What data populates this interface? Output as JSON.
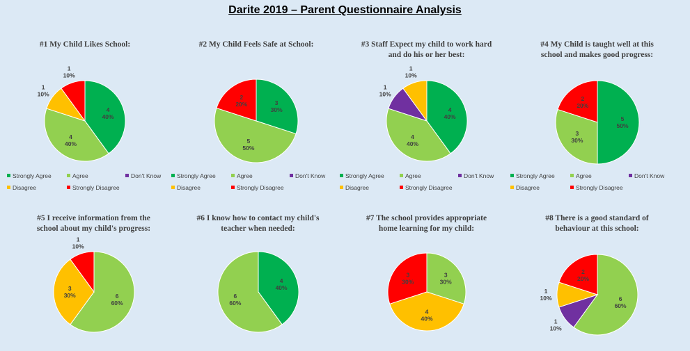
{
  "title": "Darite 2019 – Parent Questionnaire Analysis",
  "colors": {
    "Strongly Agree": "#00b050",
    "Agree": "#92d050",
    "Don't Know": "#7030a0",
    "Disagree": "#ffc000",
    "Strongly Disagree": "#ff0000"
  },
  "chart_data": [
    {
      "type": "pie",
      "title": "#1 My Child Likes School:",
      "categories": [
        "Strongly Agree",
        "Agree",
        "Don't Know",
        "Disagree",
        "Strongly Disagree"
      ],
      "values": [
        4,
        4,
        0,
        1,
        1
      ],
      "labels": [
        "4\n40%",
        "4\n40%",
        "",
        "1\n10%",
        "1\n10%"
      ],
      "legend": "bottom"
    },
    {
      "type": "pie",
      "title": "#2 My Child Feels Safe at School:",
      "categories": [
        "Strongly Agree",
        "Agree",
        "Don't Know",
        "Disagree",
        "Strongly Disagree"
      ],
      "values": [
        3,
        5,
        0,
        0,
        2
      ],
      "labels": [
        "3\n30%",
        "5\n50%",
        "",
        "",
        "2\n20%"
      ],
      "legend": "bottom"
    },
    {
      "type": "pie",
      "title": "#3 Staff Expect my child to work hard and do his or her best:",
      "categories": [
        "Strongly Agree",
        "Agree",
        "Don't Know",
        "Disagree",
        "Strongly Disagree"
      ],
      "values": [
        4,
        4,
        1,
        1,
        0
      ],
      "labels": [
        "4\n40%",
        "4\n40%",
        "1\n10%",
        "1\n10%",
        ""
      ],
      "legend": "bottom"
    },
    {
      "type": "pie",
      "title": "#4 My Child is taught well at this school and makes good progress:",
      "categories": [
        "Strongly Agree",
        "Agree",
        "Don't Know",
        "Disagree",
        "Strongly Disagree"
      ],
      "values": [
        5,
        3,
        0,
        0,
        2
      ],
      "labels": [
        "5\n50%",
        "3\n30%",
        "",
        "",
        "2\n20%"
      ],
      "legend": "bottom"
    },
    {
      "type": "pie",
      "title": "#5 I receive information from the school about my child's progress:",
      "categories": [
        "Strongly Agree",
        "Agree",
        "Don't Know",
        "Disagree",
        "Strongly Disagree"
      ],
      "values": [
        0,
        6,
        0,
        3,
        1
      ],
      "labels": [
        "",
        "6\n60%",
        "",
        "3\n30%",
        "1\n10%"
      ]
    },
    {
      "type": "pie",
      "title": "#6 I know how to contact my child's teacher when needed:",
      "categories": [
        "Strongly Agree",
        "Agree",
        "Don't Know",
        "Disagree",
        "Strongly Disagree"
      ],
      "values": [
        4,
        6,
        0,
        0,
        0
      ],
      "labels": [
        "4\n40%",
        "6\n60%",
        "",
        "",
        ""
      ]
    },
    {
      "type": "pie",
      "title": "#7 The school provides appropriate home learning for my child:",
      "categories": [
        "Strongly Agree",
        "Agree",
        "Don't Know",
        "Disagree",
        "Strongly Disagree"
      ],
      "values": [
        0,
        3,
        0,
        4,
        3
      ],
      "labels": [
        "",
        "3\n30%",
        "",
        "4\n40%",
        "3\n30%"
      ]
    },
    {
      "type": "pie",
      "title": "#8 There is a good standard of behaviour at this school:",
      "categories": [
        "Strongly Agree",
        "Agree",
        "Don't Know",
        "Disagree",
        "Strongly Disagree"
      ],
      "values": [
        0,
        6,
        1,
        1,
        2
      ],
      "labels": [
        "",
        "6\n60%",
        "1\n10%",
        "1\n10%",
        "2\n20%"
      ]
    }
  ]
}
